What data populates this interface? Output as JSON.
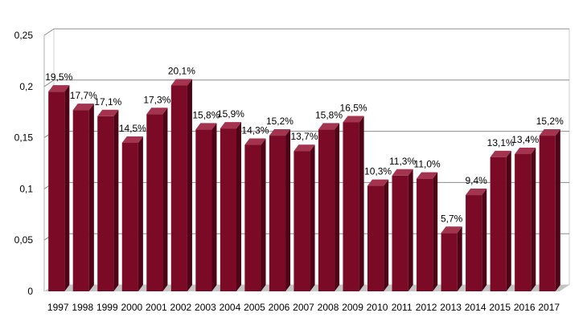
{
  "chart_data": {
    "type": "bar",
    "categories": [
      "1997",
      "1998",
      "1999",
      "2000",
      "2001",
      "2002",
      "2003",
      "2004",
      "2005",
      "2006",
      "2007",
      "2008",
      "2009",
      "2010",
      "2011",
      "2012",
      "2013",
      "2014",
      "2015",
      "2016",
      "2017"
    ],
    "values": [
      0.195,
      0.177,
      0.171,
      0.145,
      0.173,
      0.201,
      0.158,
      0.159,
      0.143,
      0.152,
      0.137,
      0.158,
      0.165,
      0.103,
      0.113,
      0.11,
      0.057,
      0.094,
      0.131,
      0.134,
      0.152
    ],
    "data_labels": [
      "19,5%",
      "17,7%",
      "17,1%",
      "14,5%",
      "17,3%",
      "20,1%",
      "15,8%",
      "15,9%",
      "14,3%",
      "15,2%",
      "13,7%",
      "15,8%",
      "16,5%",
      "10,3%",
      "11,3%",
      "11,0%",
      "5,7%",
      "9,4%",
      "13,1%",
      "13,4%",
      "15,2%"
    ],
    "y_ticks": [
      0,
      0.05,
      0.1,
      0.15,
      0.2,
      0.25
    ],
    "y_tick_labels": [
      "0",
      "0,05",
      "0,1",
      "0,15",
      "0,2",
      "0,25"
    ],
    "ylim": [
      0,
      0.25
    ],
    "grid": true,
    "title": "",
    "xlabel": "",
    "ylabel": "",
    "colors": {
      "bar_front": "#7a0a25",
      "bar_side": "#4e0416",
      "bar_top": "#a3334f",
      "wall": "#ffffff",
      "floor": "#c4c4c4",
      "grid": "#8c8c8c"
    }
  }
}
